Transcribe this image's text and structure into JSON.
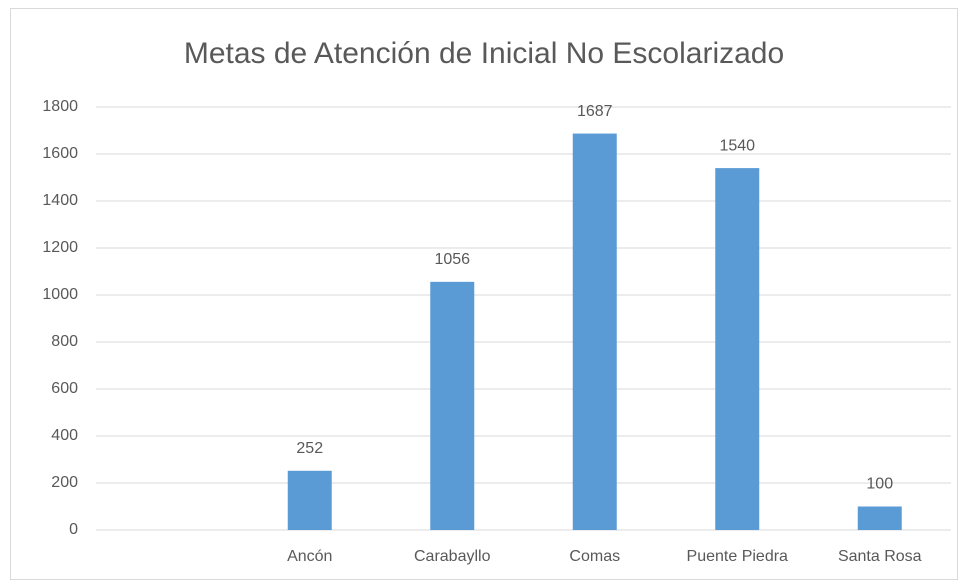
{
  "chart_data": {
    "type": "bar",
    "title": "Metas de Atención de Inicial No Escolarizado",
    "categories": [
      null,
      "Ancón",
      "Carabayllo",
      "Comas",
      "Puente Piedra",
      "Santa Rosa"
    ],
    "values": [
      null,
      252,
      1056,
      1687,
      1540,
      100
    ],
    "color": "#5b9bd5",
    "ylim": [
      0,
      1800
    ],
    "yticks": [
      0,
      200,
      400,
      600,
      800,
      1000,
      1200,
      1400,
      1600,
      1800
    ],
    "grid": true
  }
}
